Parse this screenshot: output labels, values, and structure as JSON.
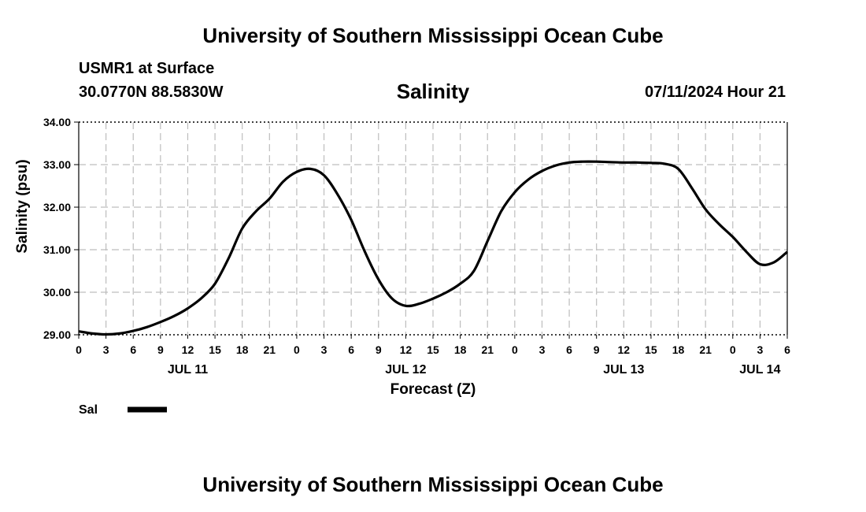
{
  "header": {
    "site_title": "University of Southern Mississippi Ocean Cube",
    "station": "USMR1 at Surface",
    "coords": "30.0770N  88.5830W",
    "datetime": "07/11/2024 Hour 21"
  },
  "footer": {
    "site_title": "University of Southern Mississippi Ocean Cube"
  },
  "chart_data": {
    "type": "line",
    "title": "Salinity",
    "xlabel": "Forecast (Z)",
    "ylabel": "Salinity (psu)",
    "xlim": [
      0,
      78
    ],
    "ylim": [
      29.0,
      34.0
    ],
    "y_ticks": [
      "29.00",
      "30.00",
      "31.00",
      "32.00",
      "33.00",
      "34.00"
    ],
    "x_ticks": [
      "0",
      "3",
      "6",
      "9",
      "12",
      "15",
      "18",
      "21",
      "0",
      "3",
      "6",
      "9",
      "12",
      "15",
      "18",
      "21",
      "0",
      "3",
      "6",
      "9",
      "12",
      "15",
      "18",
      "21",
      "0",
      "3",
      "6"
    ],
    "date_labels": [
      {
        "label": "JUL 11",
        "hour": 12
      },
      {
        "label": "JUL 12",
        "hour": 36
      },
      {
        "label": "JUL 13",
        "hour": 60
      },
      {
        "label": "JUL 14",
        "hour": 75
      }
    ],
    "grid": true,
    "legend": {
      "position": "bottom-left",
      "label": "Sal"
    },
    "series": [
      {
        "name": "Sal",
        "x": [
          0,
          1.5,
          3,
          4.5,
          6,
          7.5,
          9,
          10.5,
          12,
          13.5,
          15,
          16.5,
          18,
          19.5,
          21,
          22.5,
          24,
          25.5,
          27,
          28.5,
          30,
          31.5,
          33,
          34.5,
          36,
          37.5,
          39,
          40.5,
          42,
          43.5,
          45,
          46.5,
          48,
          49.5,
          51,
          52.5,
          54,
          55.5,
          57,
          58.5,
          60,
          61.5,
          63,
          64.5,
          66,
          67.5,
          69,
          70.5,
          72,
          73.5,
          75,
          76.5,
          78
        ],
        "values": [
          29.08,
          29.03,
          29.01,
          29.03,
          29.09,
          29.18,
          29.3,
          29.44,
          29.62,
          29.86,
          30.2,
          30.8,
          31.5,
          31.9,
          32.2,
          32.6,
          32.83,
          32.9,
          32.75,
          32.3,
          31.7,
          30.95,
          30.3,
          29.85,
          29.68,
          29.73,
          29.85,
          30.0,
          30.2,
          30.5,
          31.2,
          31.9,
          32.35,
          32.65,
          32.85,
          32.98,
          33.05,
          33.07,
          33.07,
          33.06,
          33.05,
          33.05,
          33.04,
          33.02,
          32.9,
          32.45,
          31.95,
          31.6,
          31.3,
          30.95,
          30.66,
          30.7,
          30.95
        ]
      }
    ]
  }
}
